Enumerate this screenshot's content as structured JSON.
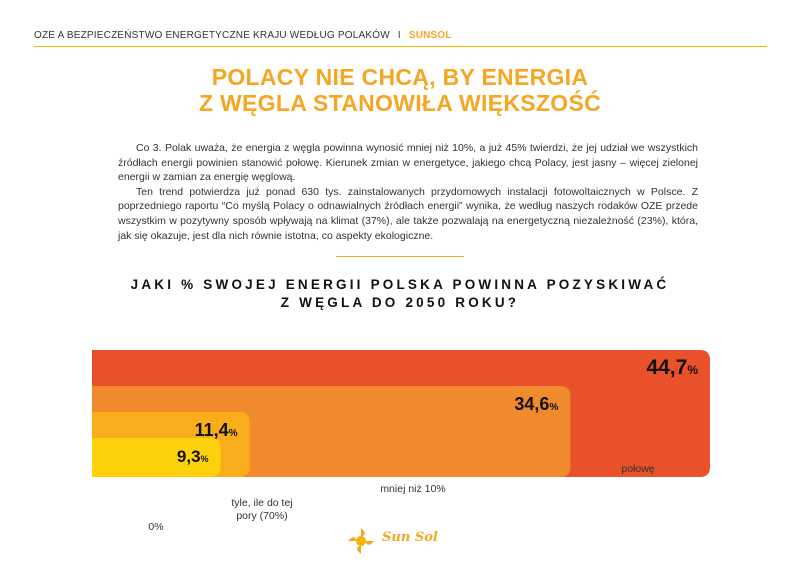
{
  "header": {
    "title": "OZE A BEZPIECZEŃSTWO ENERGETYCZNE KRAJU WEDŁUG POLAKÓW",
    "separator": "I",
    "brand": "SUNSOL"
  },
  "article": {
    "title_line1": "POLACY NIE CHCĄ, BY ENERGIA",
    "title_line2": "Z WĘGLA STANOWIŁA WIĘKSZOŚĆ",
    "paragraph1": "Co 3. Polak uważa, że energia z węgla powinna wynosić mniej niż 10%, a już 45% twierdzi, że jej udział we wszystkich źródłach energii powinien stanowić połowę. Kierunek zmian w energetyce, jakiego chcą Polacy, jest jasny – więcej zielonej energii w zamian za energię węglową.",
    "paragraph2": "Ten trend potwierdza już ponad 630 tys. zainstalowanych przydomowych instalacji fotowoltaicznych w Polsce. Z poprzedniego raportu “Co myślą Polacy o odnawialnych źródłach energii” wynika, że według naszych rodaków OZE przede wszystkim w pozytywny sposób wpływają na klimat (37%), ale także pozwalają na energetyczną niezależność (23%), która, jak się okazuje, jest dla nich równie istotna, co aspekty ekologiczne."
  },
  "chart_data": {
    "type": "bar",
    "title_line1": "JAKI % SWOJEJ ENERGII POLSKA POWINNA POZYSKIWAĆ",
    "title_line2": "Z WĘGLA DO 2050 ROKU?",
    "categories": [
      "połowę",
      "mniej niż 10%",
      "tyle, ile do tej pory (70%)",
      "0%"
    ],
    "values": [
      44.7,
      34.6,
      11.4,
      9.3
    ],
    "value_labels": [
      "44,7",
      "34,6",
      "11,4",
      "9,3"
    ],
    "unit": "%",
    "colors": [
      "#e8512a",
      "#f08a2c",
      "#f7ae1a",
      "#fdd20c"
    ],
    "layout_style": "nested overlapping bars, largest at back"
  },
  "logo": {
    "text": "Sun Sol",
    "icon": "sunsol-logo-icon"
  }
}
